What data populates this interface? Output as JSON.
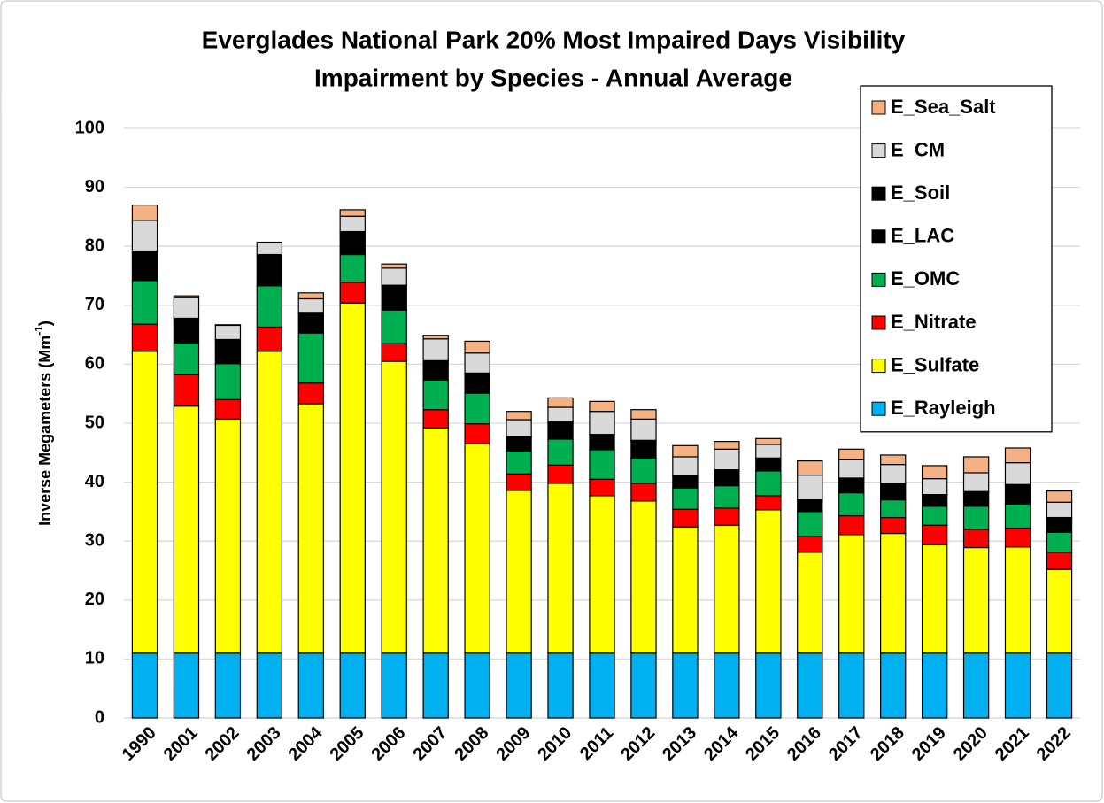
{
  "chart_data": {
    "type": "stacked_bar",
    "title": [
      "Everglades National Park 20% Most Impaired Days Visibility",
      "Impairment by Species - Annual Average"
    ],
    "y_label": {
      "text": "Inverse Megameters (Mm",
      "sup": "-1",
      "end": ")"
    },
    "categories": [
      "1990",
      "2001",
      "2002",
      "2003",
      "2004",
      "2005",
      "2006",
      "2007",
      "2008",
      "2009",
      "2010",
      "2011",
      "2012",
      "2013",
      "2014",
      "2015",
      "2016",
      "2017",
      "2018",
      "2019",
      "2020",
      "2021",
      "2022"
    ],
    "series": [
      {
        "name": "E_Rayleigh",
        "color": "#00b0f0",
        "values": [
          11,
          11,
          11,
          11,
          11,
          11,
          11,
          11,
          11,
          11,
          11,
          11,
          11,
          11,
          11,
          11,
          11,
          11,
          11,
          11,
          11,
          11,
          11
        ]
      },
      {
        "name": "E_Sulfate",
        "color": "#ffff00",
        "values": [
          51.2,
          41.9,
          39.7,
          51.2,
          42.3,
          59.4,
          49.5,
          38.2,
          35.5,
          27.6,
          28.8,
          26.7,
          25.8,
          21.4,
          21.7,
          24.3,
          17.1,
          20.1,
          20.3,
          18.4,
          17.9,
          18.0,
          14.2
        ]
      },
      {
        "name": "E_Nitrate",
        "color": "#ff0000",
        "values": [
          4.6,
          5.3,
          3.3,
          4.1,
          3.5,
          3.5,
          3.0,
          3.1,
          3.4,
          2.8,
          3.1,
          2.8,
          3.0,
          3.0,
          2.9,
          2.4,
          2.7,
          3.2,
          2.7,
          3.3,
          3.1,
          3.2,
          2.9
        ]
      },
      {
        "name": "E_OMC",
        "color": "#00b050",
        "values": [
          7.4,
          5.4,
          6.1,
          7.0,
          8.5,
          4.7,
          5.7,
          5.0,
          5.2,
          3.9,
          4.4,
          5.0,
          4.3,
          3.6,
          3.8,
          4.2,
          4.2,
          3.9,
          3.0,
          3.2,
          3.9,
          4.1,
          3.4
        ]
      },
      {
        "name": "E_LAC",
        "color": "#000000",
        "values": [
          4.8,
          4.0,
          3.9,
          5.1,
          3.3,
          3.7,
          4.0,
          3.1,
          3.2,
          2.3,
          2.7,
          2.4,
          2.8,
          2.0,
          2.5,
          2.0,
          1.8,
          2.3,
          2.6,
          1.8,
          2.3,
          3.1,
          2.3
        ]
      },
      {
        "name": "E_Soil",
        "color": "#000000",
        "values": [
          0.2,
          0.2,
          0.2,
          0.2,
          0.2,
          0.2,
          0.2,
          0.2,
          0.2,
          0.2,
          0.2,
          0.2,
          0.2,
          0.2,
          0.2,
          0.2,
          0.2,
          0.2,
          0.2,
          0.2,
          0.2,
          0.2,
          0.2
        ]
      },
      {
        "name": "E_CM",
        "color": "#d9d9d9",
        "values": [
          5.2,
          3.5,
          2.4,
          2.0,
          2.3,
          2.6,
          2.9,
          3.7,
          3.4,
          2.8,
          2.5,
          3.9,
          3.6,
          3.1,
          3.5,
          2.3,
          4.2,
          3.1,
          3.2,
          2.7,
          3.2,
          3.7,
          2.6
        ]
      },
      {
        "name": "E_Sea_Salt",
        "color": "#f4b183",
        "values": [
          2.6,
          0.3,
          0.1,
          0.1,
          1.0,
          1.1,
          0.7,
          0.6,
          2.0,
          1.4,
          1.6,
          1.7,
          1.6,
          1.9,
          1.3,
          1.0,
          2.4,
          1.8,
          1.6,
          2.2,
          2.7,
          2.5,
          1.9
        ]
      }
    ],
    "ylim": [
      0,
      100
    ],
    "yticks": [
      0,
      10,
      20,
      30,
      40,
      50,
      60,
      70,
      80,
      90,
      100
    ],
    "grid": true,
    "legend": "upper right"
  }
}
